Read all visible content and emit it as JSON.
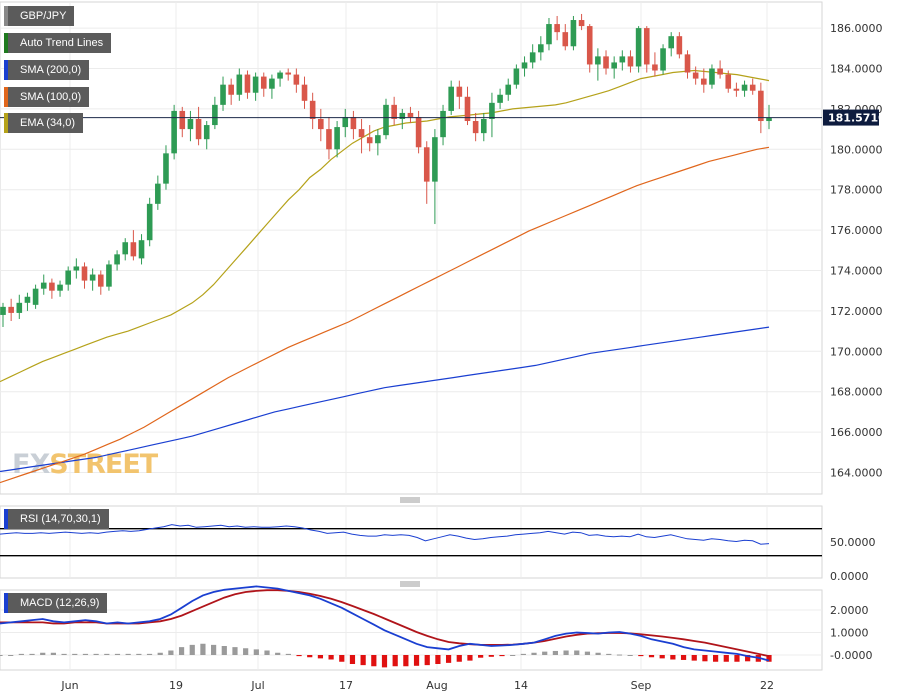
{
  "legend": [
    {
      "label": "GBP/JPY",
      "color": "#5b5b5b"
    },
    {
      "label": "Auto Trend Lines",
      "color": "#1f7a1f"
    },
    {
      "label": "SMA (200,0)",
      "color": "#1a3fd1"
    },
    {
      "label": "SMA (100,0)",
      "color": "#e0661c"
    },
    {
      "label": "EMA (34,0)",
      "color": "#b5a21a"
    }
  ],
  "price_label": "181.5710",
  "watermark": {
    "part1": "FX",
    "part2": "STREET"
  },
  "rsi_label": "RSI (14,70,30,1)",
  "macd_label": "MACD (12,26,9)",
  "chart_data": {
    "type": "candlestick",
    "x_labels": [
      "Jun",
      "19",
      "Jul",
      "17",
      "Aug",
      "14",
      "Sep",
      "22"
    ],
    "main": {
      "ylim": [
        163.0,
        187.0
      ],
      "yticks": [
        "164.0000",
        "166.0000",
        "168.0000",
        "170.0000",
        "172.0000",
        "174.0000",
        "176.0000",
        "178.0000",
        "180.0000",
        "182.0000",
        "184.0000",
        "186.0000"
      ],
      "current_price": 181.571,
      "candles": [
        [
          171.8,
          172.4,
          171.2,
          172.2
        ],
        [
          172.2,
          172.6,
          171.5,
          171.9
        ],
        [
          171.9,
          172.8,
          171.6,
          172.4
        ],
        [
          172.4,
          172.9,
          172.0,
          172.7
        ],
        [
          172.3,
          173.3,
          172.1,
          173.1
        ],
        [
          173.1,
          173.8,
          172.8,
          173.4
        ],
        [
          173.4,
          173.6,
          172.6,
          173.0
        ],
        [
          173.0,
          173.5,
          172.7,
          173.3
        ],
        [
          173.3,
          174.2,
          173.0,
          174.0
        ],
        [
          174.0,
          174.6,
          173.6,
          174.2
        ],
        [
          174.2,
          174.4,
          173.1,
          173.5
        ],
        [
          173.5,
          174.1,
          173.0,
          173.8
        ],
        [
          173.8,
          174.0,
          172.8,
          173.2
        ],
        [
          173.2,
          174.5,
          173.0,
          174.3
        ],
        [
          174.3,
          175.0,
          174.0,
          174.8
        ],
        [
          174.8,
          175.6,
          174.5,
          175.4
        ],
        [
          175.4,
          176.0,
          174.5,
          174.7
        ],
        [
          174.6,
          175.8,
          174.3,
          175.5
        ],
        [
          175.5,
          177.6,
          175.2,
          177.3
        ],
        [
          177.3,
          178.7,
          177.0,
          178.3
        ],
        [
          178.3,
          180.2,
          178.0,
          179.8
        ],
        [
          179.8,
          182.2,
          179.5,
          181.9
        ],
        [
          181.9,
          182.1,
          180.6,
          181.0
        ],
        [
          181.0,
          181.9,
          180.4,
          181.5
        ],
        [
          181.5,
          182.1,
          180.2,
          180.5
        ],
        [
          180.5,
          181.4,
          180.0,
          181.2
        ],
        [
          181.2,
          182.6,
          181.0,
          182.2
        ],
        [
          182.2,
          183.6,
          181.9,
          183.2
        ],
        [
          183.2,
          183.5,
          182.2,
          182.7
        ],
        [
          182.7,
          184.0,
          182.4,
          183.7
        ],
        [
          183.7,
          183.9,
          182.5,
          182.8
        ],
        [
          182.8,
          183.8,
          182.4,
          183.6
        ],
        [
          183.6,
          183.8,
          182.6,
          183.0
        ],
        [
          183.0,
          183.7,
          182.5,
          183.5
        ],
        [
          183.5,
          183.9,
          183.1,
          183.8
        ],
        [
          183.8,
          184.0,
          183.4,
          183.7
        ],
        [
          183.7,
          184.0,
          182.8,
          183.2
        ],
        [
          183.2,
          183.6,
          182.0,
          182.4
        ],
        [
          182.4,
          182.8,
          181.0,
          181.5
        ],
        [
          181.5,
          182.0,
          180.4,
          181.0
        ],
        [
          181.0,
          181.6,
          179.5,
          180.0
        ],
        [
          180.0,
          181.4,
          179.6,
          181.1
        ],
        [
          181.1,
          182.0,
          180.6,
          181.6
        ],
        [
          181.6,
          181.9,
          180.5,
          181.0
        ],
        [
          181.0,
          181.5,
          179.8,
          180.6
        ],
        [
          180.6,
          181.2,
          179.9,
          180.3
        ],
        [
          180.3,
          181.0,
          179.7,
          180.7
        ],
        [
          180.7,
          182.5,
          180.5,
          182.2
        ],
        [
          182.2,
          182.6,
          181.2,
          181.5
        ],
        [
          181.5,
          182.0,
          181.0,
          181.8
        ],
        [
          181.8,
          182.1,
          181.3,
          181.6
        ],
        [
          181.6,
          181.9,
          179.8,
          180.1
        ],
        [
          180.1,
          180.4,
          177.3,
          178.4
        ],
        [
          178.4,
          181.0,
          176.3,
          180.6
        ],
        [
          180.6,
          182.2,
          180.2,
          181.9
        ],
        [
          181.9,
          183.4,
          181.7,
          183.1
        ],
        [
          183.1,
          183.4,
          182.0,
          182.6
        ],
        [
          182.6,
          183.1,
          181.2,
          181.4
        ],
        [
          181.4,
          181.8,
          180.4,
          180.8
        ],
        [
          180.8,
          181.8,
          180.4,
          181.5
        ],
        [
          181.5,
          182.8,
          180.6,
          182.3
        ],
        [
          182.3,
          183.0,
          182.0,
          182.7
        ],
        [
          182.7,
          183.5,
          182.4,
          183.2
        ],
        [
          183.2,
          184.2,
          183.0,
          184.0
        ],
        [
          184.0,
          184.6,
          183.6,
          184.3
        ],
        [
          184.3,
          185.2,
          184.0,
          184.8
        ],
        [
          184.8,
          185.6,
          184.4,
          185.2
        ],
        [
          185.2,
          186.5,
          184.9,
          186.2
        ],
        [
          186.2,
          186.6,
          185.4,
          185.8
        ],
        [
          185.8,
          186.2,
          184.9,
          185.1
        ],
        [
          185.1,
          186.6,
          184.9,
          186.4
        ],
        [
          186.4,
          186.7,
          185.9,
          186.1
        ],
        [
          186.1,
          186.2,
          183.8,
          184.2
        ],
        [
          184.2,
          185.0,
          183.4,
          184.6
        ],
        [
          184.6,
          184.9,
          183.7,
          184.0
        ],
        [
          184.0,
          184.6,
          183.5,
          184.3
        ],
        [
          184.3,
          184.9,
          183.9,
          184.6
        ],
        [
          184.6,
          184.9,
          183.8,
          184.1
        ],
        [
          184.1,
          186.1,
          183.8,
          186.0
        ],
        [
          186.0,
          186.1,
          183.8,
          184.2
        ],
        [
          184.2,
          184.8,
          183.6,
          183.9
        ],
        [
          183.9,
          185.2,
          183.7,
          185.0
        ],
        [
          185.0,
          185.8,
          184.6,
          185.6
        ],
        [
          185.6,
          185.8,
          184.5,
          184.7
        ],
        [
          184.7,
          184.9,
          183.5,
          183.8
        ],
        [
          183.8,
          184.1,
          183.2,
          183.5
        ],
        [
          183.5,
          184.0,
          182.8,
          183.2
        ],
        [
          183.2,
          184.2,
          183.0,
          184.0
        ],
        [
          184.0,
          184.4,
          183.5,
          183.7
        ],
        [
          183.7,
          183.9,
          182.8,
          183.0
        ],
        [
          183.0,
          183.3,
          182.6,
          182.9
        ],
        [
          182.9,
          183.4,
          182.6,
          183.2
        ],
        [
          183.2,
          183.5,
          182.7,
          182.9
        ],
        [
          182.9,
          183.3,
          180.8,
          181.4
        ],
        [
          181.4,
          182.2,
          181.0,
          181.57
        ]
      ],
      "ema34": [
        168.5,
        168.75,
        169.0,
        169.25,
        169.5,
        169.7,
        169.9,
        170.1,
        170.3,
        170.5,
        170.7,
        170.85,
        171.0,
        171.2,
        171.4,
        171.6,
        171.8,
        172.1,
        172.4,
        172.8,
        173.3,
        173.9,
        174.5,
        175.1,
        175.7,
        176.3,
        176.9,
        177.5,
        178.0,
        178.6,
        179.0,
        179.5,
        179.9,
        180.3,
        180.6,
        180.9,
        181.1,
        181.2,
        181.3,
        181.35,
        181.4,
        181.5,
        181.6,
        181.65,
        181.7,
        181.75,
        181.8,
        181.9,
        182.0,
        182.05,
        182.1,
        182.15,
        182.2,
        182.3,
        182.45,
        182.6,
        182.75,
        182.9,
        183.1,
        183.3,
        183.5,
        183.6,
        183.7,
        183.8,
        183.85,
        183.9,
        183.85,
        183.8,
        183.75,
        183.7,
        183.6,
        183.5,
        183.4
      ],
      "sma100": [
        163.5,
        163.7,
        163.9,
        164.1,
        164.3,
        164.5,
        164.7,
        164.9,
        165.15,
        165.4,
        165.65,
        165.95,
        166.25,
        166.6,
        166.95,
        167.3,
        167.65,
        168.0,
        168.35,
        168.7,
        169.0,
        169.3,
        169.6,
        169.9,
        170.2,
        170.45,
        170.7,
        170.95,
        171.2,
        171.45,
        171.75,
        172.05,
        172.35,
        172.65,
        172.95,
        173.25,
        173.55,
        173.85,
        174.15,
        174.45,
        174.75,
        175.05,
        175.35,
        175.65,
        175.95,
        176.2,
        176.45,
        176.7,
        176.95,
        177.2,
        177.45,
        177.7,
        177.95,
        178.2,
        178.4,
        178.6,
        178.8,
        179.0,
        179.2,
        179.4,
        179.55,
        179.7,
        179.85,
        180.0,
        180.1
      ],
      "sma200": [
        164.05,
        164.15,
        164.25,
        164.35,
        164.45,
        164.55,
        164.65,
        164.75,
        164.9,
        165.05,
        165.2,
        165.35,
        165.5,
        165.65,
        165.8,
        166.0,
        166.2,
        166.4,
        166.6,
        166.8,
        167.0,
        167.15,
        167.3,
        167.45,
        167.6,
        167.75,
        167.9,
        168.05,
        168.2,
        168.3,
        168.4,
        168.5,
        168.6,
        168.7,
        168.8,
        168.9,
        169.0,
        169.1,
        169.2,
        169.3,
        169.45,
        169.6,
        169.75,
        169.9,
        170.0,
        170.1,
        170.2,
        170.3,
        170.4,
        170.5,
        170.6,
        170.7,
        170.8,
        170.9,
        171.0,
        171.1,
        171.2
      ]
    },
    "rsi": {
      "ylim": [
        0,
        100
      ],
      "yticks": [
        "0.0000",
        "50.0000"
      ],
      "levels": [
        30,
        70
      ],
      "values": [
        62,
        63,
        64,
        63,
        63,
        64,
        63,
        64,
        65,
        64,
        63,
        64,
        63,
        65,
        66,
        67,
        66,
        67,
        69,
        71,
        73,
        76,
        74,
        75,
        72,
        73,
        74,
        75,
        73,
        74,
        72,
        73,
        72,
        72,
        73,
        74,
        73,
        71,
        68,
        66,
        63,
        64,
        65,
        62,
        60,
        59,
        59,
        61,
        60,
        61,
        60,
        57,
        52,
        55,
        58,
        61,
        59,
        56,
        54,
        55,
        57,
        58,
        59,
        61,
        62,
        63,
        64,
        66,
        64,
        62,
        65,
        64,
        60,
        61,
        59,
        58,
        59,
        58,
        62,
        58,
        57,
        59,
        61,
        58,
        55,
        54,
        53,
        55,
        54,
        52,
        51,
        53,
        52,
        47,
        48
      ]
    },
    "macd": {
      "ylim": [
        -0.5,
        3.4
      ],
      "yticks": [
        "-0.0000",
        "1.0000",
        "2.0000"
      ],
      "macd": [
        1.4,
        1.45,
        1.5,
        1.55,
        1.6,
        1.5,
        1.45,
        1.5,
        1.55,
        1.5,
        1.4,
        1.45,
        1.4,
        1.45,
        1.5,
        1.6,
        1.8,
        2.1,
        2.4,
        2.65,
        2.8,
        2.9,
        2.95,
        3.0,
        3.05,
        3.0,
        2.95,
        2.85,
        2.75,
        2.65,
        2.5,
        2.3,
        2.1,
        1.85,
        1.6,
        1.35,
        1.1,
        0.9,
        0.7,
        0.5,
        0.35,
        0.3,
        0.25,
        0.4,
        0.5,
        0.45,
        0.4,
        0.42,
        0.45,
        0.5,
        0.55,
        0.7,
        0.85,
        0.95,
        1.0,
        0.98,
        0.95,
        1.0,
        1.02,
        0.95,
        0.85,
        0.7,
        0.6,
        0.5,
        0.35,
        0.25,
        0.2,
        0.15,
        0.1,
        0.05,
        -0.05,
        -0.12,
        -0.25
      ],
      "signal": [
        1.45,
        1.45,
        1.45,
        1.45,
        1.45,
        1.4,
        1.4,
        1.45,
        1.45,
        1.45,
        1.4,
        1.4,
        1.4,
        1.4,
        1.45,
        1.5,
        1.6,
        1.75,
        1.95,
        2.15,
        2.35,
        2.55,
        2.7,
        2.8,
        2.85,
        2.88,
        2.88,
        2.85,
        2.8,
        2.72,
        2.62,
        2.5,
        2.35,
        2.18,
        2.0,
        1.82,
        1.62,
        1.42,
        1.22,
        1.02,
        0.85,
        0.7,
        0.58,
        0.52,
        0.48,
        0.45,
        0.45,
        0.45,
        0.46,
        0.5,
        0.55,
        0.62,
        0.72,
        0.82,
        0.9,
        0.95,
        0.97,
        0.98,
        0.98,
        0.96,
        0.92,
        0.87,
        0.82,
        0.76,
        0.7,
        0.62,
        0.55,
        0.45,
        0.35,
        0.25,
        0.15,
        0.05,
        -0.05
      ],
      "histogram": [
        0,
        0,
        0.05,
        0.05,
        0.1,
        0.1,
        0.05,
        0.05,
        0.05,
        0.05,
        0.05,
        0.05,
        0.05,
        0.05,
        0.05,
        0.1,
        0.2,
        0.35,
        0.45,
        0.5,
        0.45,
        0.4,
        0.35,
        0.3,
        0.25,
        0.2,
        0.1,
        0.05,
        -0.05,
        -0.1,
        -0.15,
        -0.2,
        -0.3,
        -0.4,
        -0.45,
        -0.5,
        -0.55,
        -0.5,
        -0.5,
        -0.48,
        -0.45,
        -0.4,
        -0.35,
        -0.3,
        -0.25,
        -0.12,
        -0.08,
        -0.05,
        0,
        0.05,
        0.1,
        0.15,
        0.18,
        0.2,
        0.2,
        0.15,
        0.1,
        0.05,
        0.02,
        0,
        -0.05,
        -0.1,
        -0.15,
        -0.2,
        -0.22,
        -0.25,
        -0.28,
        -0.3,
        -0.3,
        -0.3,
        -0.28,
        -0.3,
        -0.3
      ]
    }
  }
}
